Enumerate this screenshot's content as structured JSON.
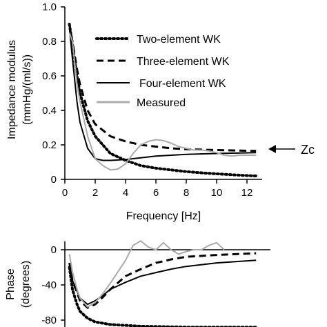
{
  "chart_data": [
    {
      "type": "line",
      "ylabel_line1": "Impedance modulus",
      "ylabel_line2": "(mmHg/(ml/s))",
      "xlabel": "Frequency [Hz]",
      "xlim": [
        0,
        13
      ],
      "ylim": [
        0,
        1.0
      ],
      "xticks": [
        "0",
        "2",
        "4",
        "6",
        "8",
        "10",
        "12"
      ],
      "yticks": [
        "0",
        "0.2",
        "0.4",
        "0.6",
        "0.8",
        "1.0"
      ],
      "annotation": "Zc",
      "annotation_y": 0.15,
      "legend_position": "top-right",
      "series": [
        {
          "name": "Two-element WK",
          "style": "dotted",
          "color": "#000000",
          "points": [
            [
              0.3,
              0.9
            ],
            [
              0.5,
              0.78
            ],
            [
              0.8,
              0.6
            ],
            [
              1.0,
              0.5
            ],
            [
              1.5,
              0.34
            ],
            [
              2.0,
              0.25
            ],
            [
              3.0,
              0.15
            ],
            [
              4.0,
              0.11
            ],
            [
              5.0,
              0.08
            ],
            [
              6.0,
              0.065
            ],
            [
              7.0,
              0.055
            ],
            [
              8.0,
              0.045
            ],
            [
              9.0,
              0.038
            ],
            [
              10.0,
              0.032
            ],
            [
              11.0,
              0.027
            ],
            [
              12.0,
              0.022
            ],
            [
              12.6,
              0.02
            ]
          ]
        },
        {
          "name": "Three-element WK",
          "style": "dashed",
          "color": "#000000",
          "points": [
            [
              0.3,
              0.9
            ],
            [
              0.5,
              0.8
            ],
            [
              0.8,
              0.64
            ],
            [
              1.0,
              0.55
            ],
            [
              1.5,
              0.4
            ],
            [
              2.0,
              0.32
            ],
            [
              3.0,
              0.25
            ],
            [
              4.0,
              0.22
            ],
            [
              5.0,
              0.2
            ],
            [
              6.0,
              0.19
            ],
            [
              7.0,
              0.18
            ],
            [
              8.0,
              0.175
            ],
            [
              10.0,
              0.17
            ],
            [
              12.6,
              0.165
            ]
          ]
        },
        {
          "name": "Four-element WK",
          "style": "solid",
          "color": "#000000",
          "points": [
            [
              0.3,
              0.88
            ],
            [
              0.5,
              0.7
            ],
            [
              0.8,
              0.45
            ],
            [
              1.0,
              0.33
            ],
            [
              1.5,
              0.18
            ],
            [
              2.0,
              0.12
            ],
            [
              2.5,
              0.11
            ],
            [
              3.0,
              0.11
            ],
            [
              4.0,
              0.115
            ],
            [
              5.0,
              0.125
            ],
            [
              6.0,
              0.135
            ],
            [
              7.0,
              0.14
            ],
            [
              8.0,
              0.145
            ],
            [
              10.0,
              0.15
            ],
            [
              12.6,
              0.155
            ]
          ]
        },
        {
          "name": "Measured",
          "style": "solid",
          "color": "#aaaaaa",
          "points": [
            [
              0.3,
              0.85
            ],
            [
              0.5,
              0.8
            ],
            [
              0.8,
              0.55
            ],
            [
              1.0,
              0.45
            ],
            [
              1.5,
              0.25
            ],
            [
              2.0,
              0.12
            ],
            [
              2.5,
              0.08
            ],
            [
              3.0,
              0.055
            ],
            [
              3.5,
              0.06
            ],
            [
              4.0,
              0.09
            ],
            [
              4.5,
              0.15
            ],
            [
              5.0,
              0.2
            ],
            [
              5.5,
              0.22
            ],
            [
              6.0,
              0.23
            ],
            [
              6.5,
              0.225
            ],
            [
              7.0,
              0.21
            ],
            [
              7.5,
              0.19
            ],
            [
              8.0,
              0.18
            ],
            [
              8.5,
              0.17
            ],
            [
              9.0,
              0.17
            ],
            [
              9.5,
              0.165
            ],
            [
              10.0,
              0.155
            ],
            [
              10.5,
              0.14
            ],
            [
              11.0,
              0.135
            ],
            [
              11.5,
              0.14
            ],
            [
              12.0,
              0.14
            ],
            [
              12.6,
              0.14
            ]
          ]
        }
      ]
    },
    {
      "type": "line",
      "ylabel_line1": "Phase",
      "ylabel_line2": "(degrees)",
      "xlim": [
        0,
        13
      ],
      "ylim": [
        -90,
        10
      ],
      "yticks": [
        "0",
        "-40",
        "-80"
      ],
      "series": [
        {
          "name": "Two-element WK",
          "style": "dotted",
          "color": "#000000",
          "points": [
            [
              0.3,
              -20
            ],
            [
              0.5,
              -45
            ],
            [
              0.8,
              -62
            ],
            [
              1.0,
              -70
            ],
            [
              1.5,
              -78
            ],
            [
              2.0,
              -82
            ],
            [
              3.0,
              -85
            ],
            [
              5.0,
              -87
            ],
            [
              8.0,
              -88
            ],
            [
              12.6,
              -88
            ]
          ]
        },
        {
          "name": "Three-element WK",
          "style": "dashed",
          "color": "#000000",
          "points": [
            [
              0.3,
              -15
            ],
            [
              0.5,
              -35
            ],
            [
              1.0,
              -58
            ],
            [
              1.5,
              -66
            ],
            [
              2.0,
              -62
            ],
            [
              2.5,
              -54
            ],
            [
              3.0,
              -45
            ],
            [
              4.0,
              -30
            ],
            [
              5.0,
              -22
            ],
            [
              6.0,
              -15
            ],
            [
              7.0,
              -11
            ],
            [
              8.0,
              -8
            ],
            [
              10.0,
              -6
            ],
            [
              12.6,
              -4
            ]
          ]
        },
        {
          "name": "Four-element WK",
          "style": "solid",
          "color": "#000000",
          "points": [
            [
              0.3,
              -15
            ],
            [
              0.5,
              -35
            ],
            [
              1.0,
              -55
            ],
            [
              1.5,
              -62
            ],
            [
              2.0,
              -58
            ],
            [
              2.5,
              -52
            ],
            [
              3.0,
              -45
            ],
            [
              4.0,
              -37
            ],
            [
              5.0,
              -30
            ],
            [
              6.0,
              -26
            ],
            [
              7.0,
              -22
            ],
            [
              8.0,
              -19
            ],
            [
              10.0,
              -15
            ],
            [
              12.6,
              -12
            ]
          ]
        },
        {
          "name": "Measured",
          "style": "solid",
          "color": "#aaaaaa",
          "points": [
            [
              0.3,
              -5
            ],
            [
              0.5,
              -25
            ],
            [
              0.8,
              -45
            ],
            [
              1.0,
              -55
            ],
            [
              1.5,
              -65
            ],
            [
              2.0,
              -60
            ],
            [
              2.5,
              -50
            ],
            [
              3.0,
              -38
            ],
            [
              3.5,
              -25
            ],
            [
              4.0,
              -12
            ],
            [
              4.5,
              5
            ],
            [
              5.0,
              10
            ],
            [
              5.5,
              3
            ],
            [
              6.0,
              0
            ],
            [
              6.5,
              8
            ],
            [
              7.0,
              0
            ],
            [
              7.5,
              -5
            ],
            [
              8.0,
              -2
            ],
            [
              8.5,
              0
            ],
            [
              9.0,
              0
            ],
            [
              9.5,
              5
            ],
            [
              10.0,
              8
            ],
            [
              10.5,
              0
            ]
          ]
        }
      ]
    }
  ]
}
